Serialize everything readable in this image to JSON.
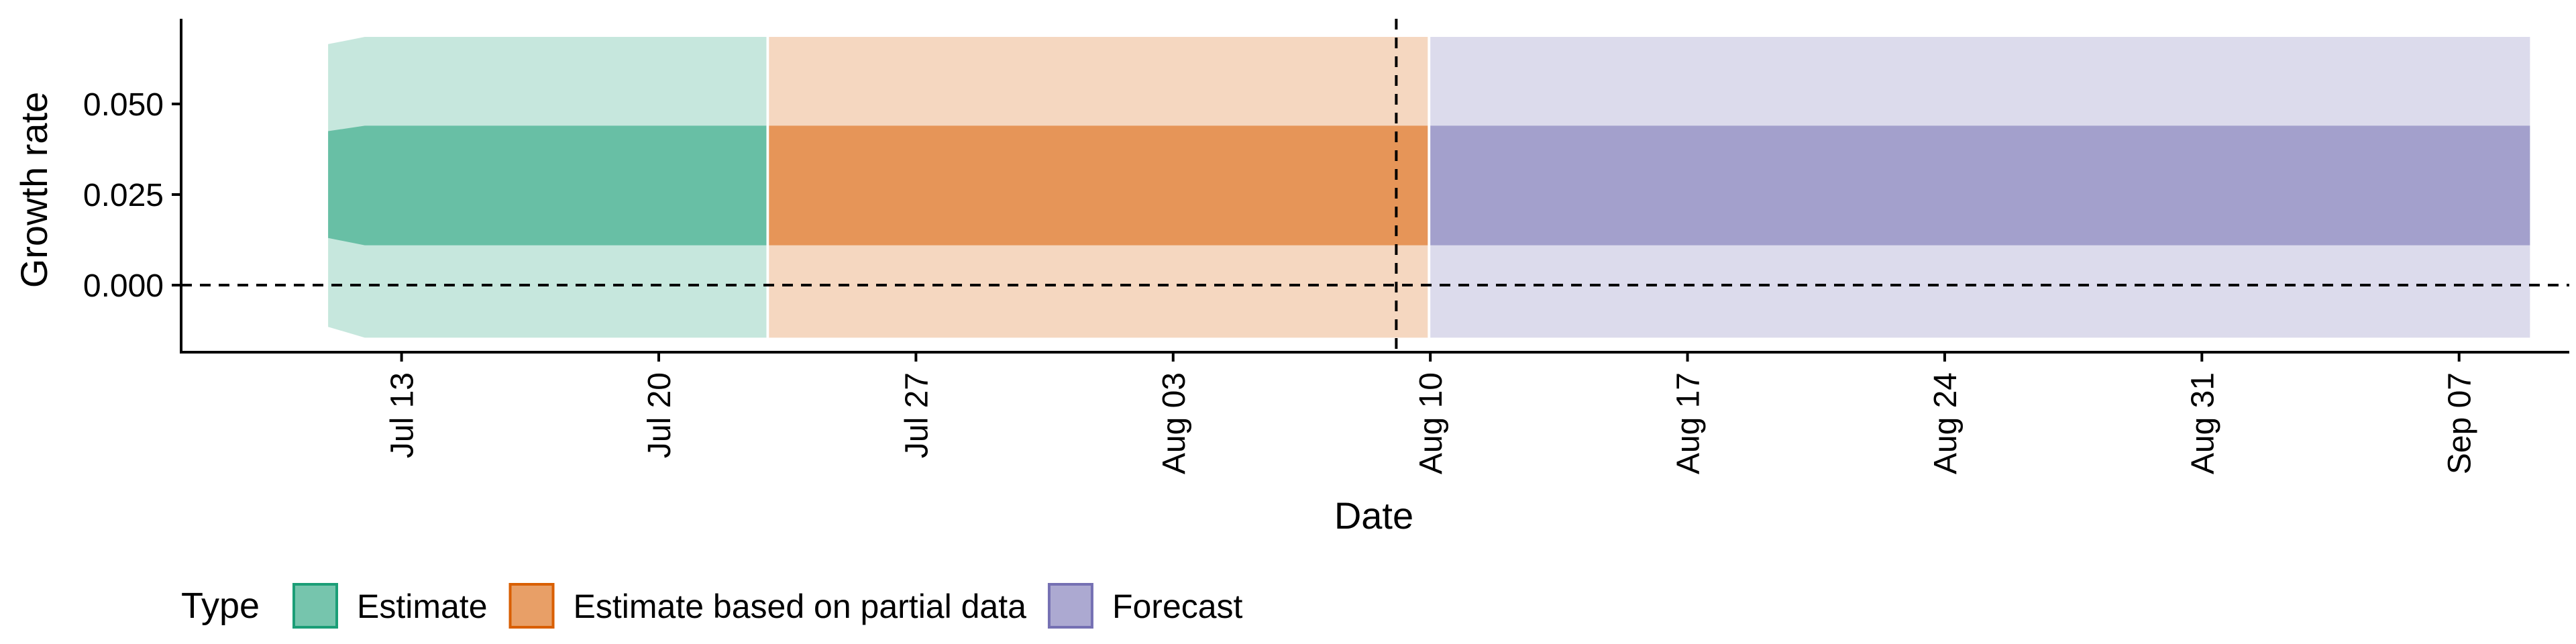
{
  "chart_data": {
    "type": "area",
    "xlabel": "Date",
    "ylabel": "Growth rate",
    "x_range": [
      "2020-07-07",
      "2020-09-10"
    ],
    "ylim": [
      -0.0185,
      0.0735
    ],
    "y_ticks": [
      0.0,
      0.025,
      0.05
    ],
    "y_tick_labels": [
      "0.000",
      "0.025",
      "0.050"
    ],
    "x_ticks": [
      "2020-07-13",
      "2020-07-20",
      "2020-07-27",
      "2020-08-03",
      "2020-08-10",
      "2020-08-17",
      "2020-08-24",
      "2020-08-31",
      "2020-09-07"
    ],
    "x_tick_labels": [
      "Jul 13",
      "Jul 20",
      "Jul 27",
      "Aug 03",
      "Aug 10",
      "Aug 17",
      "Aug 24",
      "Aug 31",
      "Sep 07"
    ],
    "hline_y": 0,
    "vline_x": "2020-08-09",
    "grid": false,
    "legend": {
      "title": "Type",
      "position": "bottom"
    },
    "series": [
      {
        "name": "Estimate",
        "color": "#1b9e77",
        "points": [
          {
            "date": "2020-07-11",
            "outer": [
              -0.0115,
              0.0665
            ],
            "inner": [
              0.013,
              0.0425
            ]
          },
          {
            "date": "2020-07-12",
            "outer": [
              -0.0145,
              0.0685
            ],
            "inner": [
              0.011,
              0.044
            ]
          },
          {
            "date": "2020-07-22",
            "outer": [
              -0.0145,
              0.0685
            ],
            "inner": [
              0.011,
              0.044
            ]
          }
        ]
      },
      {
        "name": "Estimate based on partial data",
        "color": "#d95f02",
        "points": [
          {
            "date": "2020-07-23",
            "outer": [
              -0.0145,
              0.0685
            ],
            "inner": [
              0.011,
              0.044
            ]
          },
          {
            "date": "2020-08-09",
            "outer": [
              -0.0145,
              0.0685
            ],
            "inner": [
              0.011,
              0.044
            ]
          }
        ]
      },
      {
        "name": "Forecast",
        "color": "#7570b3",
        "points": [
          {
            "date": "2020-08-10",
            "outer": [
              -0.0145,
              0.0685
            ],
            "inner": [
              0.011,
              0.044
            ]
          },
          {
            "date": "2020-09-08",
            "outer": [
              -0.0145,
              0.0685
            ],
            "inner": [
              0.011,
              0.044
            ]
          }
        ]
      }
    ]
  }
}
